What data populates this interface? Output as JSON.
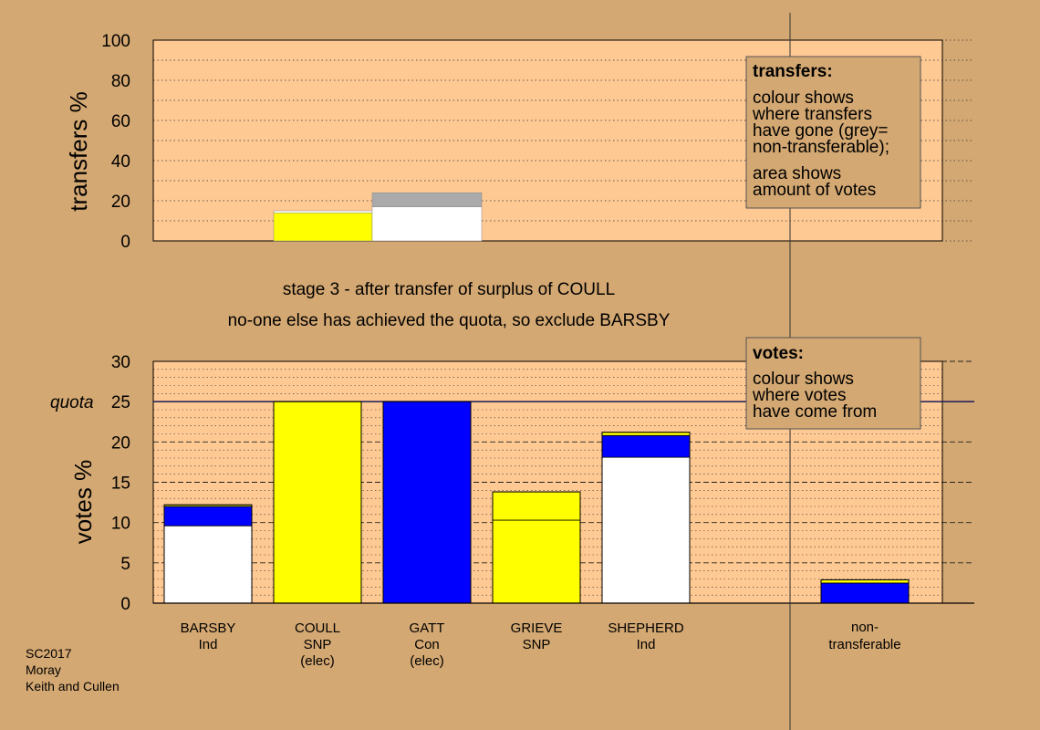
{
  "colors": {
    "background": "#d4a872",
    "panel": "#ffc993",
    "yellow": "#ffff00",
    "blue": "#0000ff",
    "white": "#ffffff",
    "grey": "#aaaaaa",
    "box": "#d4a872"
  },
  "stage": {
    "line1": "stage 3 - after transfer of surplus of COULL",
    "line2": "no-one else has achieved the quota, so exclude BARSBY"
  },
  "credit": [
    "SC2017",
    "Moray",
    "Keith and Cullen"
  ],
  "quota_label": "quota",
  "transfers_box": {
    "title": "transfers:",
    "lines1": [
      "colour shows",
      "where transfers",
      "have gone (grey=",
      "non-transferable);"
    ],
    "lines2": [
      "area shows",
      "amount of votes"
    ]
  },
  "votes_box": {
    "title": "votes:",
    "lines": [
      "colour shows",
      "where votes",
      "have come from"
    ]
  },
  "chart_data": [
    {
      "type": "bar",
      "ylabel": "transfers %",
      "ylim": [
        0,
        100
      ],
      "yticks": [
        "0",
        "20",
        "40",
        "60",
        "80",
        "100"
      ],
      "grid": true,
      "bars": [
        {
          "x_from": 1.1,
          "x_to": 2.0,
          "segments": [
            {
              "color": "yellow",
              "from": 0,
              "to": 14
            },
            {
              "color": "white",
              "from": 14,
              "to": 15
            }
          ]
        },
        {
          "x_from": 2.0,
          "x_to": 3.0,
          "segments": [
            {
              "color": "white",
              "from": 0,
              "to": 17
            },
            {
              "color": "grey",
              "from": 17,
              "to": 24
            }
          ]
        }
      ]
    },
    {
      "type": "bar",
      "ylabel": "votes %",
      "ylim": [
        0,
        30
      ],
      "yticks": [
        "0",
        "5",
        "10",
        "15",
        "20",
        "25",
        "30"
      ],
      "quota": 25,
      "grid": true,
      "categories": [
        {
          "name": "BARSBY",
          "party": "Ind",
          "note": ""
        },
        {
          "name": "COULL",
          "party": "SNP",
          "note": "(elec)"
        },
        {
          "name": "GATT",
          "party": "Con",
          "note": "(elec)"
        },
        {
          "name": "GRIEVE",
          "party": "SNP",
          "note": ""
        },
        {
          "name": "SHEPHERD",
          "party": "Ind",
          "note": ""
        }
      ],
      "nontransferable_label": [
        "non-",
        "transferable"
      ],
      "series": [
        {
          "segments": [
            {
              "color": "white",
              "from": 0,
              "to": 9.6
            },
            {
              "color": "blue",
              "from": 9.6,
              "to": 12.0
            },
            {
              "color": "yellow",
              "from": 12.0,
              "to": 12.2
            }
          ]
        },
        {
          "segments": [
            {
              "color": "yellow",
              "from": 0,
              "to": 25
            }
          ]
        },
        {
          "segments": [
            {
              "color": "blue",
              "from": 0,
              "to": 25
            }
          ]
        },
        {
          "segments": [
            {
              "color": "yellow",
              "from": 0,
              "to": 10.3
            },
            {
              "color": "yellow",
              "from": 10.3,
              "to": 13.8
            }
          ]
        },
        {
          "segments": [
            {
              "color": "white",
              "from": 0,
              "to": 18.1
            },
            {
              "color": "blue",
              "from": 18.1,
              "to": 20.8
            },
            {
              "color": "yellow",
              "from": 20.8,
              "to": 21.2
            }
          ]
        }
      ],
      "nontransferable": {
        "segments": [
          {
            "color": "blue",
            "from": 0,
            "to": 2.5
          },
          {
            "color": "yellow",
            "from": 2.5,
            "to": 2.9
          }
        ]
      }
    }
  ]
}
